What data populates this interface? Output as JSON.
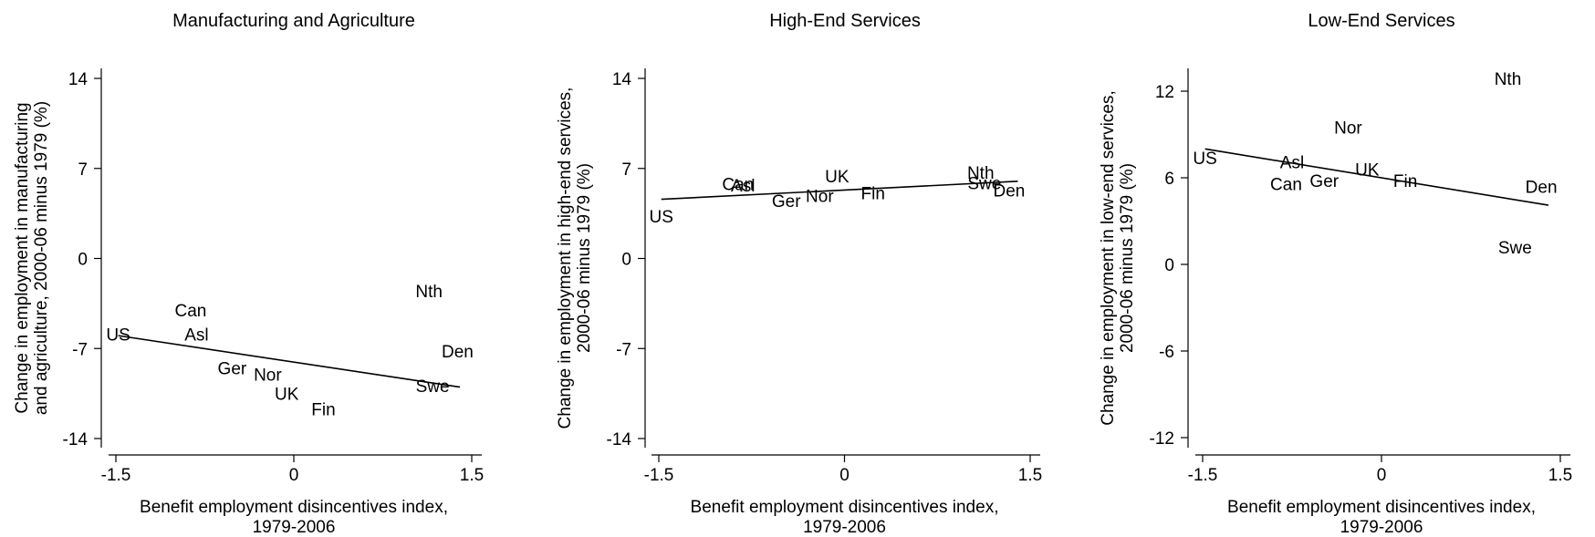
{
  "chart_data": [
    {
      "type": "scatter",
      "title": "Manufacturing and Agriculture",
      "xlabel": [
        "Benefit employment disincentives index,",
        "1979-2006"
      ],
      "ylabel": [
        "Change in employment in manufacturing",
        "and agriculture, 2000-06 minus 1979 (%)"
      ],
      "xlim": [
        -1.5,
        1.5
      ],
      "ylim": [
        -14,
        14
      ],
      "xticks": [
        -1.5,
        0,
        1.5
      ],
      "xtick_labels": [
        "-1.5",
        "0",
        "1.5"
      ],
      "yticks": [
        -14,
        -7,
        0,
        7,
        14
      ],
      "ytick_labels": [
        "-14",
        "-7",
        "0",
        "7",
        "14"
      ],
      "points": [
        {
          "label": "US",
          "x": -1.48,
          "y": -5.9
        },
        {
          "label": "Can",
          "x": -0.87,
          "y": -4.0
        },
        {
          "label": "Asl",
          "x": -0.82,
          "y": -5.9
        },
        {
          "label": "Ger",
          "x": -0.52,
          "y": -8.5
        },
        {
          "label": "Nor",
          "x": -0.22,
          "y": -9.0
        },
        {
          "label": "UK",
          "x": -0.06,
          "y": -10.5
        },
        {
          "label": "Fin",
          "x": 0.25,
          "y": -11.7
        },
        {
          "label": "Nth",
          "x": 1.14,
          "y": -2.5
        },
        {
          "label": "Den",
          "x": 1.38,
          "y": -7.2
        },
        {
          "label": "Swe",
          "x": 1.17,
          "y": -9.9
        }
      ],
      "fit": {
        "x": [
          -1.48,
          1.4
        ],
        "y": [
          -6.0,
          -10.0
        ]
      }
    },
    {
      "type": "scatter",
      "title": "High-End Services",
      "xlabel": [
        "Benefit employment disincentives index,",
        "1979-2006"
      ],
      "ylabel": [
        "Change in employment in high-end services,",
        "2000-06 minus 1979 (%)"
      ],
      "xlim": [
        -1.5,
        1.5
      ],
      "ylim": [
        -14,
        14
      ],
      "xticks": [
        -1.5,
        0,
        1.5
      ],
      "xtick_labels": [
        "-1.5",
        "0",
        "1.5"
      ],
      "yticks": [
        -14,
        -7,
        0,
        7,
        14
      ],
      "ytick_labels": [
        "-14",
        "-7",
        "0",
        "7",
        "14"
      ],
      "points": [
        {
          "label": "US",
          "x": -1.48,
          "y": 3.3
        },
        {
          "label": "Can",
          "x": -0.86,
          "y": 5.8
        },
        {
          "label": "Asl",
          "x": -0.82,
          "y": 5.7
        },
        {
          "label": "Ger",
          "x": -0.47,
          "y": 4.5
        },
        {
          "label": "Nor",
          "x": -0.2,
          "y": 4.9
        },
        {
          "label": "UK",
          "x": -0.06,
          "y": 6.4
        },
        {
          "label": "Fin",
          "x": 0.23,
          "y": 5.1
        },
        {
          "label": "Nth",
          "x": 1.1,
          "y": 6.7
        },
        {
          "label": "Swe",
          "x": 1.13,
          "y": 5.9
        },
        {
          "label": "Den",
          "x": 1.33,
          "y": 5.3
        }
      ],
      "fit": {
        "x": [
          -1.48,
          1.4
        ],
        "y": [
          4.6,
          6.0
        ]
      }
    },
    {
      "type": "scatter",
      "title": "Low-End Services",
      "xlabel": [
        "Benefit employment disincentives index,",
        "1979-2006"
      ],
      "ylabel": [
        "Change in employment in low-end services,",
        "2000-06 minus 1979 (%)"
      ],
      "xlim": [
        -1.5,
        1.5
      ],
      "ylim": [
        -12,
        12
      ],
      "xticks": [
        -1.5,
        0,
        1.5
      ],
      "xtick_labels": [
        "-1.5",
        "0",
        "1.5"
      ],
      "yticks": [
        -12,
        -6,
        0,
        6,
        12
      ],
      "ytick_labels": [
        "-12",
        "-6",
        "0",
        "6",
        "12"
      ],
      "points": [
        {
          "label": "US",
          "x": -1.48,
          "y": 7.4
        },
        {
          "label": "Asl",
          "x": -0.75,
          "y": 7.1
        },
        {
          "label": "Can",
          "x": -0.8,
          "y": 5.6
        },
        {
          "label": "Ger",
          "x": -0.48,
          "y": 5.8
        },
        {
          "label": "Nor",
          "x": -0.28,
          "y": 9.5
        },
        {
          "label": "UK",
          "x": -0.12,
          "y": 6.6
        },
        {
          "label": "Fin",
          "x": 0.2,
          "y": 5.8
        },
        {
          "label": "Nth",
          "x": 1.06,
          "y": 12.9
        },
        {
          "label": "Den",
          "x": 1.34,
          "y": 5.4
        },
        {
          "label": "Swe",
          "x": 1.12,
          "y": 1.2
        }
      ],
      "fit": {
        "x": [
          -1.48,
          1.4
        ],
        "y": [
          8.0,
          4.1
        ]
      }
    }
  ]
}
